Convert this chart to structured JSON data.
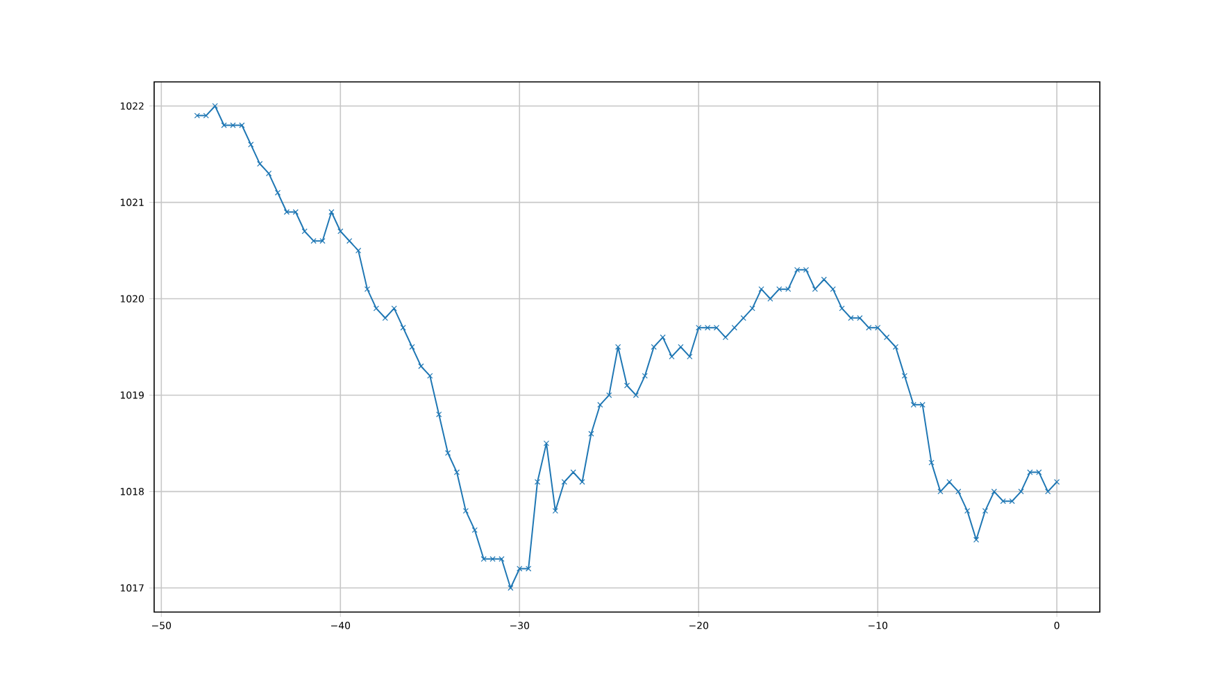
{
  "chart_data": {
    "type": "line",
    "color": "#1f77b4",
    "marker": "cross",
    "grid": true,
    "x": [
      -48,
      -47.5,
      -47,
      -46.5,
      -46,
      -45.5,
      -45,
      -44.5,
      -44,
      -43.5,
      -43,
      -42.5,
      -42,
      -41.5,
      -41,
      -40.5,
      -40,
      -39.5,
      -39,
      -38.5,
      -38,
      -37.5,
      -37,
      -36.5,
      -36,
      -35.5,
      -35,
      -34.5,
      -34,
      -33.5,
      -33,
      -32.5,
      -32,
      -31.5,
      -31,
      -30.5,
      -30,
      -29.5,
      -29,
      -28.5,
      -28,
      -27.5,
      -27,
      -26.5,
      -26,
      -25.5,
      -25,
      -24.5,
      -24,
      -23.5,
      -23,
      -22.5,
      -22,
      -21.5,
      -21,
      -20.5,
      -20,
      -19.5,
      -19,
      -18.5,
      -18,
      -17.5,
      -17,
      -16.5,
      -16,
      -15.5,
      -15,
      -14.5,
      -14,
      -13.5,
      -13,
      -12.5,
      -12,
      -11.5,
      -11,
      -10.5,
      -10,
      -9.5,
      -9,
      -8.5,
      -8,
      -7.5,
      -7,
      -6.5,
      -6,
      -5.5,
      -5,
      -4.5,
      -4,
      -3.5,
      -3,
      -2.5,
      -2,
      -1.5,
      -1,
      -0.5,
      0
    ],
    "values": [
      1021.9,
      1021.9,
      1022.0,
      1021.8,
      1021.8,
      1021.8,
      1021.6,
      1021.4,
      1021.3,
      1021.1,
      1020.9,
      1020.9,
      1020.7,
      1020.6,
      1020.6,
      1020.9,
      1020.7,
      1020.6,
      1020.5,
      1020.1,
      1019.9,
      1019.8,
      1019.9,
      1019.7,
      1019.5,
      1019.3,
      1019.2,
      1018.8,
      1018.4,
      1018.2,
      1017.8,
      1017.6,
      1017.3,
      1017.3,
      1017.3,
      1017.0,
      1017.2,
      1017.2,
      1018.1,
      1018.5,
      1017.8,
      1018.1,
      1018.2,
      1018.1,
      1018.6,
      1018.9,
      1019.0,
      1019.5,
      1019.1,
      1019.0,
      1019.2,
      1019.5,
      1019.6,
      1019.4,
      1019.5,
      1019.4,
      1019.7,
      1019.7,
      1019.7,
      1019.6,
      1019.7,
      1019.8,
      1019.9,
      1020.1,
      1020.0,
      1020.1,
      1020.1,
      1020.3,
      1020.3,
      1020.1,
      1020.2,
      1020.1,
      1019.9,
      1019.8,
      1019.8,
      1019.7,
      1019.7,
      1019.6,
      1019.5,
      1019.2,
      1018.9,
      1018.9,
      1018.3,
      1018.0,
      1018.1,
      1018.0,
      1017.8,
      1017.5,
      1017.8,
      1018.0,
      1017.9,
      1017.9,
      1018.0,
      1018.2,
      1018.2,
      1018.0,
      1018.1
    ],
    "xlim": [
      -50.4,
      2.4
    ],
    "ylim": [
      1016.75,
      1022.25
    ],
    "xticks": [
      {
        "value": -50,
        "label": "−50"
      },
      {
        "value": -40,
        "label": "−40"
      },
      {
        "value": -30,
        "label": "−30"
      },
      {
        "value": -20,
        "label": "−20"
      },
      {
        "value": -10,
        "label": "−10"
      },
      0
    ],
    "yticks": [
      1017,
      1018,
      1019,
      1020,
      1021,
      1022
    ]
  }
}
